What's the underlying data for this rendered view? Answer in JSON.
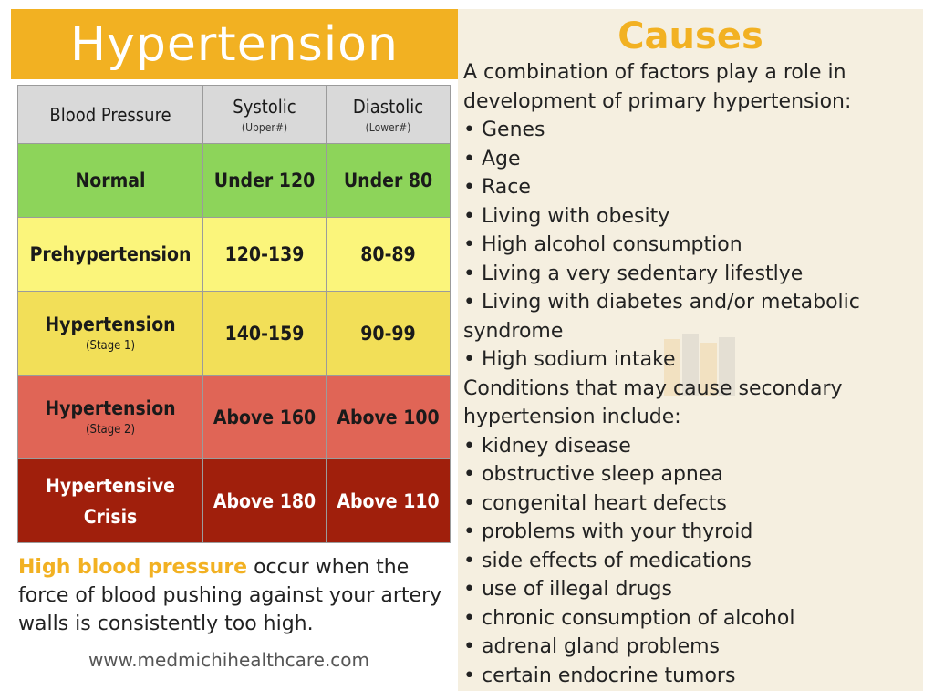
{
  "title": "Hypertension",
  "table": {
    "headers": {
      "col1": "Blood Pressure",
      "col2": "Systolic",
      "col2_sub": "(Upper#)",
      "col3": "Diastolic",
      "col3_sub": "(Lower#)"
    },
    "rows": [
      {
        "label": "Normal",
        "sub": "",
        "systolic": "Under 120",
        "diastolic": "Under 80",
        "color": "#8dd45a"
      },
      {
        "label": "Prehypertension",
        "sub": "",
        "systolic": "120-139",
        "diastolic": "80-89",
        "color": "#fbf57b"
      },
      {
        "label": "Hypertension",
        "sub": "(Stage 1)",
        "systolic": "140-159",
        "diastolic": "90-99",
        "color": "#f2df58"
      },
      {
        "label": "Hypertension",
        "sub": "(Stage 2)",
        "systolic": "Above 160",
        "diastolic": "Above 100",
        "color": "#e06556"
      },
      {
        "label": "Hypertensive Crisis",
        "sub": "",
        "systolic": "Above 180",
        "diastolic": "Above 110",
        "color": "#a01f0c"
      }
    ]
  },
  "description": {
    "highlight": "High blood pressure",
    "rest": " occur when the force of blood pushing against your artery walls is consistently too high."
  },
  "website": "www.medmichihealthcare.com",
  "causes": {
    "title": "Causes",
    "intro_primary": "A combination of factors play a role in development of primary hypertension:",
    "primary": [
      "Genes",
      "Age",
      "Race",
      "Living with obesity",
      "High alcohol consumption",
      "Living a very sedentary lifestlye",
      "Living with diabetes and/or metabolic syndrome",
      "High sodium intake"
    ],
    "intro_secondary": "Conditions that may cause secondary hypertension include:",
    "secondary": [
      "kidney disease",
      "obstructive sleep apnea",
      "congenital heart defects",
      "problems with your thyroid",
      "side effects of medications",
      "use of illegal drugs",
      "chronic consumption of alcohol",
      "adrenal gland problems",
      "certain endocrine tumors"
    ]
  },
  "colors": {
    "accent": "#f2b122",
    "panel_bg": "#f5efe0"
  }
}
